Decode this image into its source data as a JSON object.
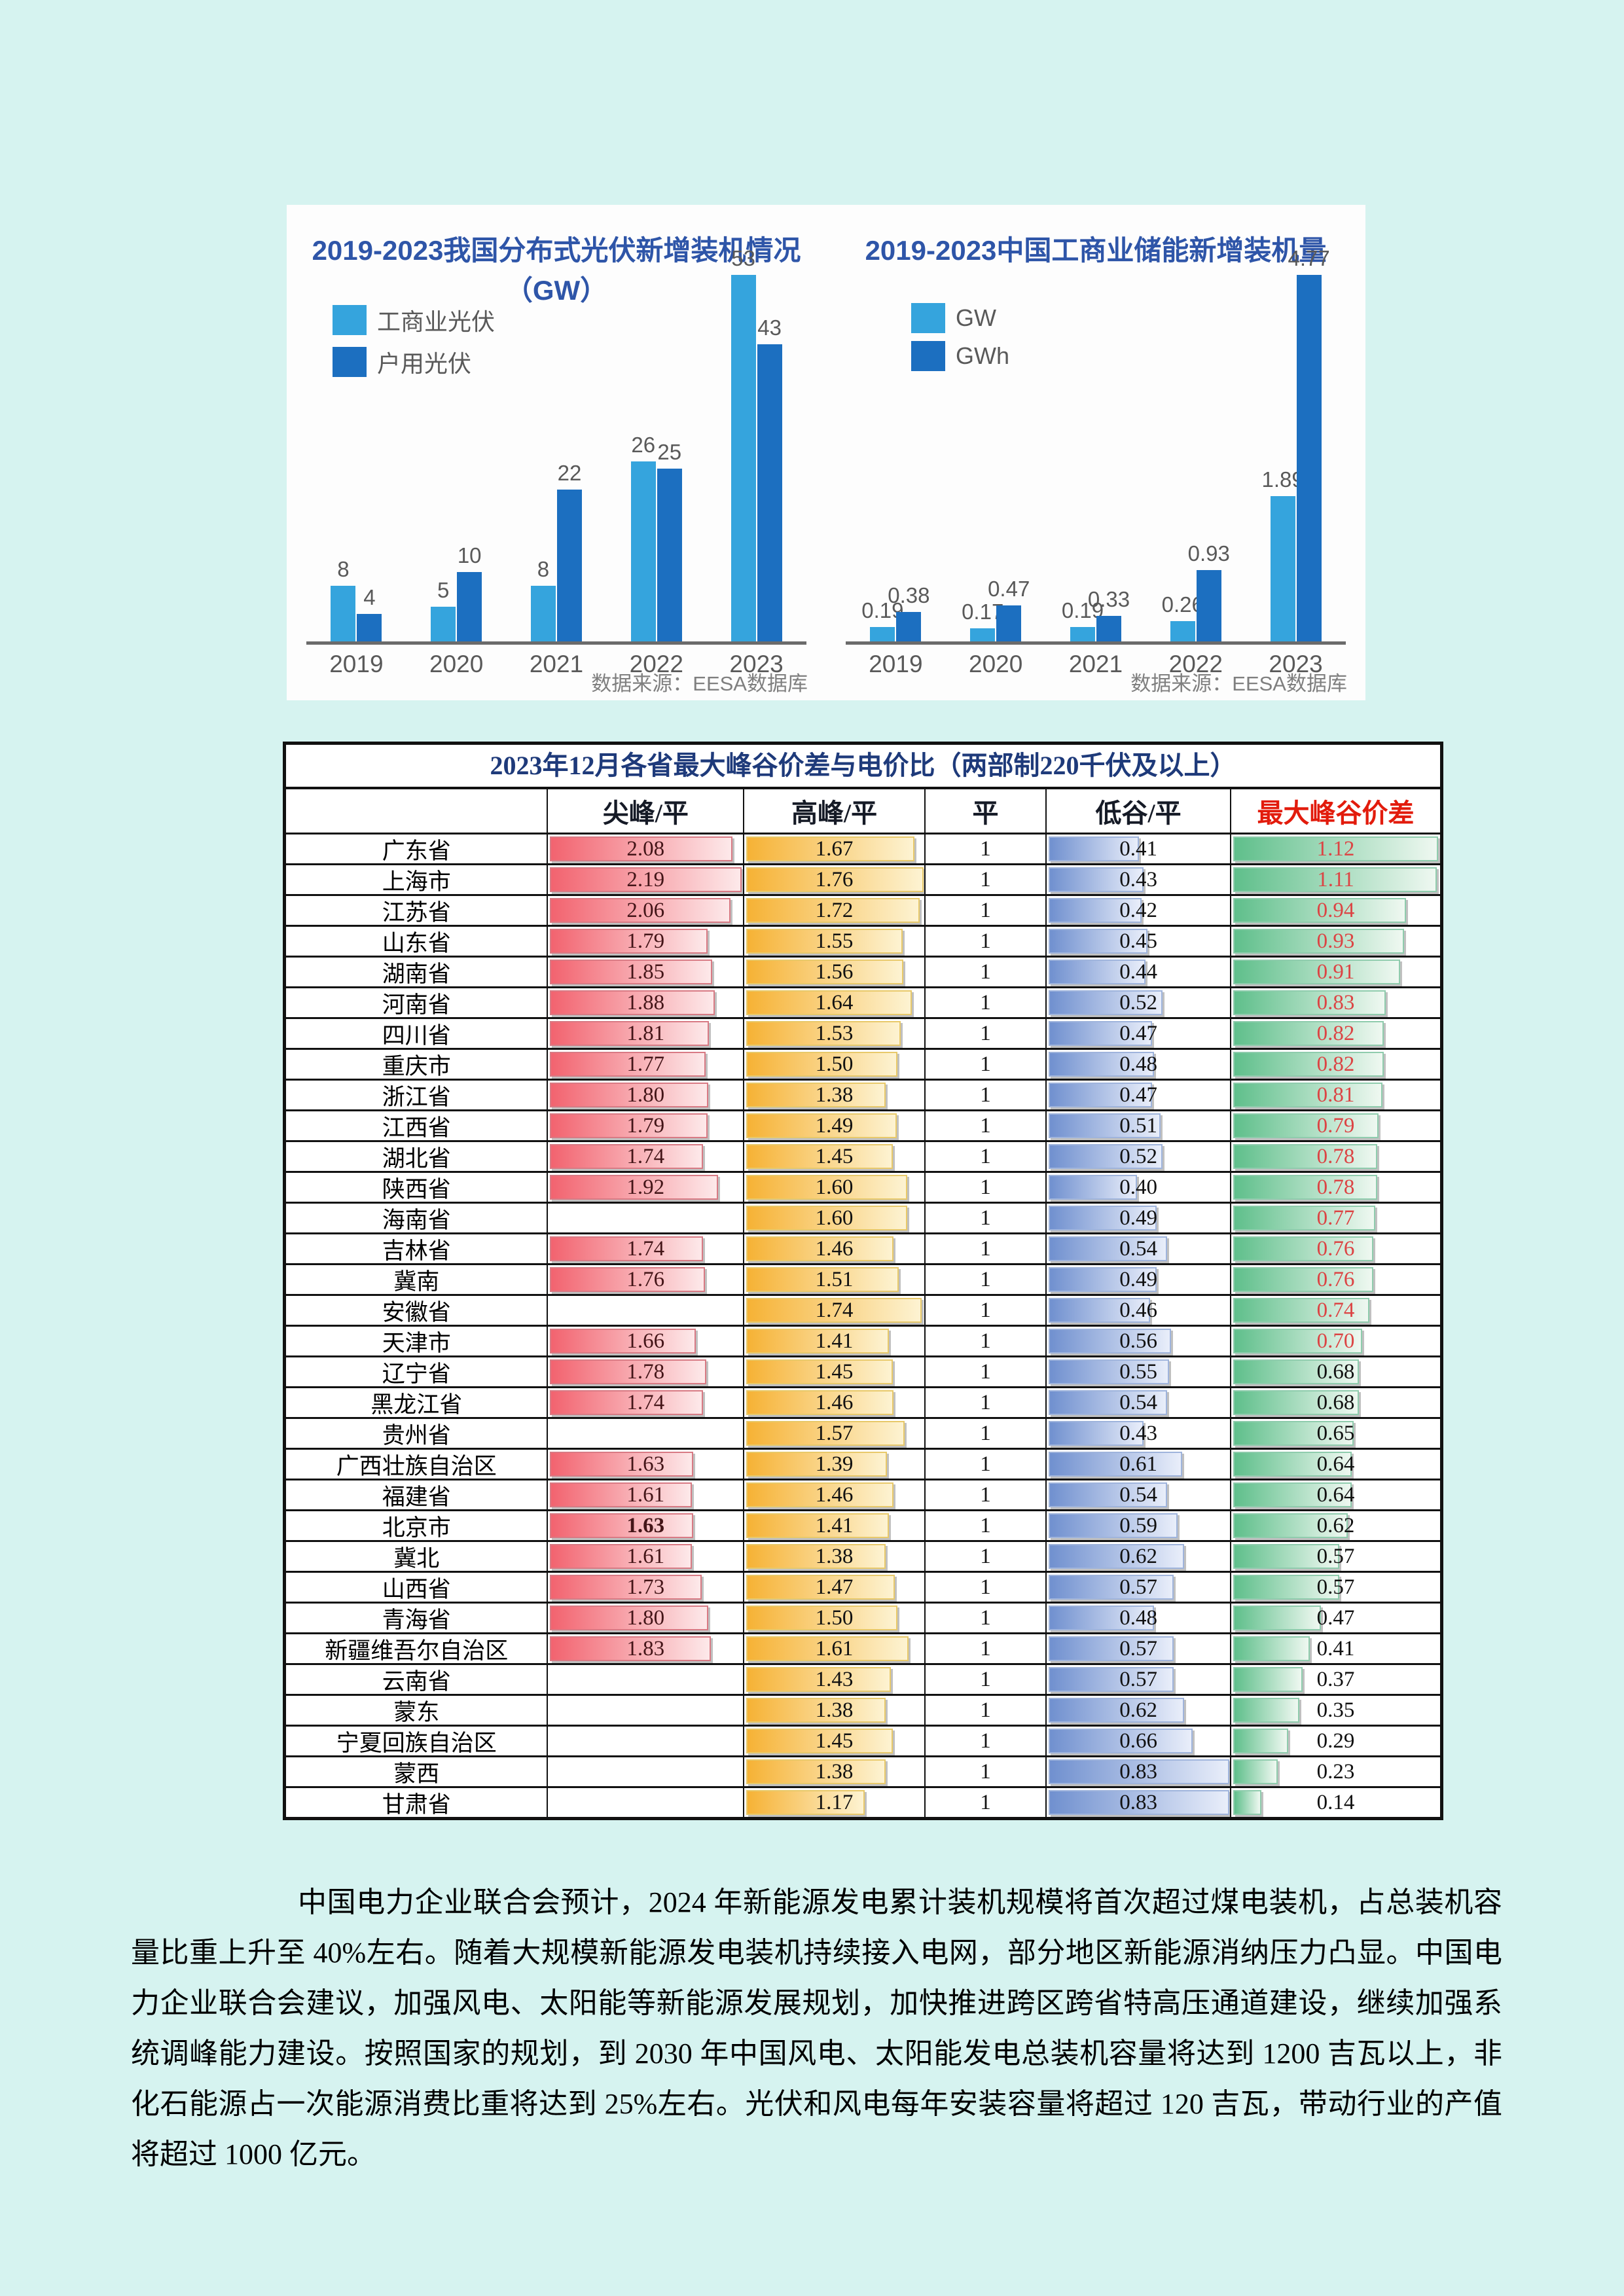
{
  "page": {
    "background": "#d6f3f0",
    "panel_background": "#fdfdfd"
  },
  "colors": {
    "chart_title": "#2e55a8",
    "bar_light_blue": "#35a4dd",
    "bar_dark_blue": "#1c6fc0",
    "axis_gray": "#6b6b6b",
    "label_gray": "#595959",
    "table_title_navy": "#1e3a7a",
    "header_red": "#e21b0c",
    "max_diff_red_text": "#dc4444",
    "red_bar": [
      "#f2636f",
      "#fde9ea"
    ],
    "yellow_bar": [
      "#f6b235",
      "#fdf3d2"
    ],
    "blue_bar": [
      "#7090cf",
      "#e9eefa"
    ],
    "green_bar": [
      "#5fbf8b",
      "#eff8f1"
    ]
  },
  "chart_data": [
    {
      "type": "bar",
      "title": "2019-2023我国分布式光伏新增装机情况（GW）",
      "categories": [
        "2019",
        "2020",
        "2021",
        "2022",
        "2023"
      ],
      "series": [
        {
          "name": "工商业光伏",
          "color": "#35a4dd",
          "values": [
            8,
            5,
            8,
            26,
            53
          ]
        },
        {
          "name": "户用光伏",
          "color": "#1c6fc0",
          "values": [
            4,
            10,
            22,
            25,
            43
          ]
        }
      ],
      "ylim": [
        0,
        56
      ],
      "grid": false,
      "legend_position": "top-left",
      "source": "数据来源：EESA数据库"
    },
    {
      "type": "bar",
      "title": "2019-2023中国工商业储能新增装机量",
      "categories": [
        "2019",
        "2020",
        "2021",
        "2022",
        "2023"
      ],
      "series": [
        {
          "name": "GW",
          "color": "#35a4dd",
          "values": [
            0.19,
            0.17,
            0.19,
            0.26,
            1.89
          ]
        },
        {
          "name": "GWh",
          "color": "#1c6fc0",
          "values": [
            0.38,
            0.47,
            0.33,
            0.93,
            4.77
          ]
        }
      ],
      "ylim": [
        0,
        5
      ],
      "grid": false,
      "legend_position": "top-left",
      "source": "数据来源：EESA数据库"
    }
  ],
  "table": {
    "title": "2023年12月各省最大峰谷价差与电价比（两部制220千伏及以上）",
    "headers": [
      "",
      "尖峰/平",
      "高峰/平",
      "平",
      "低谷/平",
      "最大峰谷价差"
    ],
    "column_max": {
      "jf": 2.19,
      "gf": 1.76,
      "dg": 0.83,
      "mx": 1.12
    },
    "red_text_threshold": 0.7,
    "rows": [
      {
        "name": "广东省",
        "jf": "2.08",
        "gf": "1.67",
        "p": "1",
        "dg": "0.41",
        "mx": "1.12"
      },
      {
        "name": "上海市",
        "jf": "2.19",
        "gf": "1.76",
        "p": "1",
        "dg": "0.43",
        "mx": "1.11"
      },
      {
        "name": "江苏省",
        "jf": "2.06",
        "gf": "1.72",
        "p": "1",
        "dg": "0.42",
        "mx": "0.94"
      },
      {
        "name": "山东省",
        "jf": "1.79",
        "gf": "1.55",
        "p": "1",
        "dg": "0.45",
        "mx": "0.93"
      },
      {
        "name": "湖南省",
        "jf": "1.85",
        "gf": "1.56",
        "p": "1",
        "dg": "0.44",
        "mx": "0.91"
      },
      {
        "name": "河南省",
        "jf": "1.88",
        "gf": "1.64",
        "p": "1",
        "dg": "0.52",
        "mx": "0.83"
      },
      {
        "name": "四川省",
        "jf": "1.81",
        "gf": "1.53",
        "p": "1",
        "dg": "0.47",
        "mx": "0.82"
      },
      {
        "name": "重庆市",
        "jf": "1.77",
        "gf": "1.50",
        "p": "1",
        "dg": "0.48",
        "mx": "0.82"
      },
      {
        "name": "浙江省",
        "jf": "1.80",
        "gf": "1.38",
        "p": "1",
        "dg": "0.47",
        "mx": "0.81"
      },
      {
        "name": "江西省",
        "jf": "1.79",
        "gf": "1.49",
        "p": "1",
        "dg": "0.51",
        "mx": "0.79"
      },
      {
        "name": "湖北省",
        "jf": "1.74",
        "gf": "1.45",
        "p": "1",
        "dg": "0.52",
        "mx": "0.78"
      },
      {
        "name": "陕西省",
        "jf": "1.92",
        "gf": "1.60",
        "p": "1",
        "dg": "0.40",
        "mx": "0.78"
      },
      {
        "name": "海南省",
        "jf": "",
        "gf": "1.60",
        "p": "1",
        "dg": "0.49",
        "mx": "0.77"
      },
      {
        "name": "吉林省",
        "jf": "1.74",
        "gf": "1.46",
        "p": "1",
        "dg": "0.54",
        "mx": "0.76"
      },
      {
        "name": "冀南",
        "jf": "1.76",
        "gf": "1.51",
        "p": "1",
        "dg": "0.49",
        "mx": "0.76"
      },
      {
        "name": "安徽省",
        "jf": "",
        "gf": "1.74",
        "p": "1",
        "dg": "0.46",
        "mx": "0.74"
      },
      {
        "name": "天津市",
        "jf": "1.66",
        "gf": "1.41",
        "p": "1",
        "dg": "0.56",
        "mx": "0.70"
      },
      {
        "name": "辽宁省",
        "jf": "1.78",
        "gf": "1.45",
        "p": "1",
        "dg": "0.55",
        "mx": "0.68"
      },
      {
        "name": "黑龙江省",
        "jf": "1.74",
        "gf": "1.46",
        "p": "1",
        "dg": "0.54",
        "mx": "0.68"
      },
      {
        "name": "贵州省",
        "jf": "",
        "gf": "1.57",
        "p": "1",
        "dg": "0.43",
        "mx": "0.65"
      },
      {
        "name": "广西壮族自治区",
        "jf": "1.63",
        "gf": "1.39",
        "p": "1",
        "dg": "0.61",
        "mx": "0.64"
      },
      {
        "name": "福建省",
        "jf": "1.61",
        "gf": "1.46",
        "p": "1",
        "dg": "0.54",
        "mx": "0.64"
      },
      {
        "name": "北京市",
        "jf": "1.63",
        "jf_bold": true,
        "gf": "1.41",
        "p": "1",
        "dg": "0.59",
        "mx": "0.62"
      },
      {
        "name": "冀北",
        "jf": "1.61",
        "gf": "1.38",
        "p": "1",
        "dg": "0.62",
        "mx": "0.57"
      },
      {
        "name": "山西省",
        "jf": "1.73",
        "gf": "1.47",
        "p": "1",
        "dg": "0.57",
        "mx": "0.57"
      },
      {
        "name": "青海省",
        "jf": "1.80",
        "gf": "1.50",
        "p": "1",
        "dg": "0.48",
        "mx": "0.47"
      },
      {
        "name": "新疆维吾尔自治区",
        "jf": "1.83",
        "gf": "1.61",
        "p": "1",
        "dg": "0.57",
        "mx": "0.41"
      },
      {
        "name": "云南省",
        "jf": "",
        "gf": "1.43",
        "p": "1",
        "dg": "0.57",
        "mx": "0.37"
      },
      {
        "name": "蒙东",
        "jf": "",
        "gf": "1.38",
        "p": "1",
        "dg": "0.62",
        "mx": "0.35"
      },
      {
        "name": "宁夏回族自治区",
        "jf": "",
        "gf": "1.45",
        "p": "1",
        "dg": "0.66",
        "mx": "0.29"
      },
      {
        "name": "蒙西",
        "jf": "",
        "gf": "1.38",
        "p": "1",
        "dg": "0.83",
        "mx": "0.23"
      },
      {
        "name": "甘肃省",
        "jf": "",
        "gf": "1.17",
        "p": "1",
        "dg": "0.83",
        "mx": "0.14"
      }
    ]
  },
  "paragraph": {
    "text": "中国电力企业联合会预计，2024 年新能源发电累计装机规模将首次超过煤电装机，占总装机容量比重上升至 40%左右。随着大规模新能源发电装机持续接入电网，部分地区新能源消纳压力凸显。中国电力企业联合会建议，加强风电、太阳能等新能源发展规划，加快推进跨区跨省特高压通道建设，继续加强系统调峰能力建设。按照国家的规划，到 2030 年中国风电、太阳能发电总装机容量将达到 1200 吉瓦以上，非化石能源占一次能源消费比重将达到 25%左右。光伏和风电每年安装容量将超过 120 吉瓦，带动行业的产值将超过 1000 亿元。"
  }
}
